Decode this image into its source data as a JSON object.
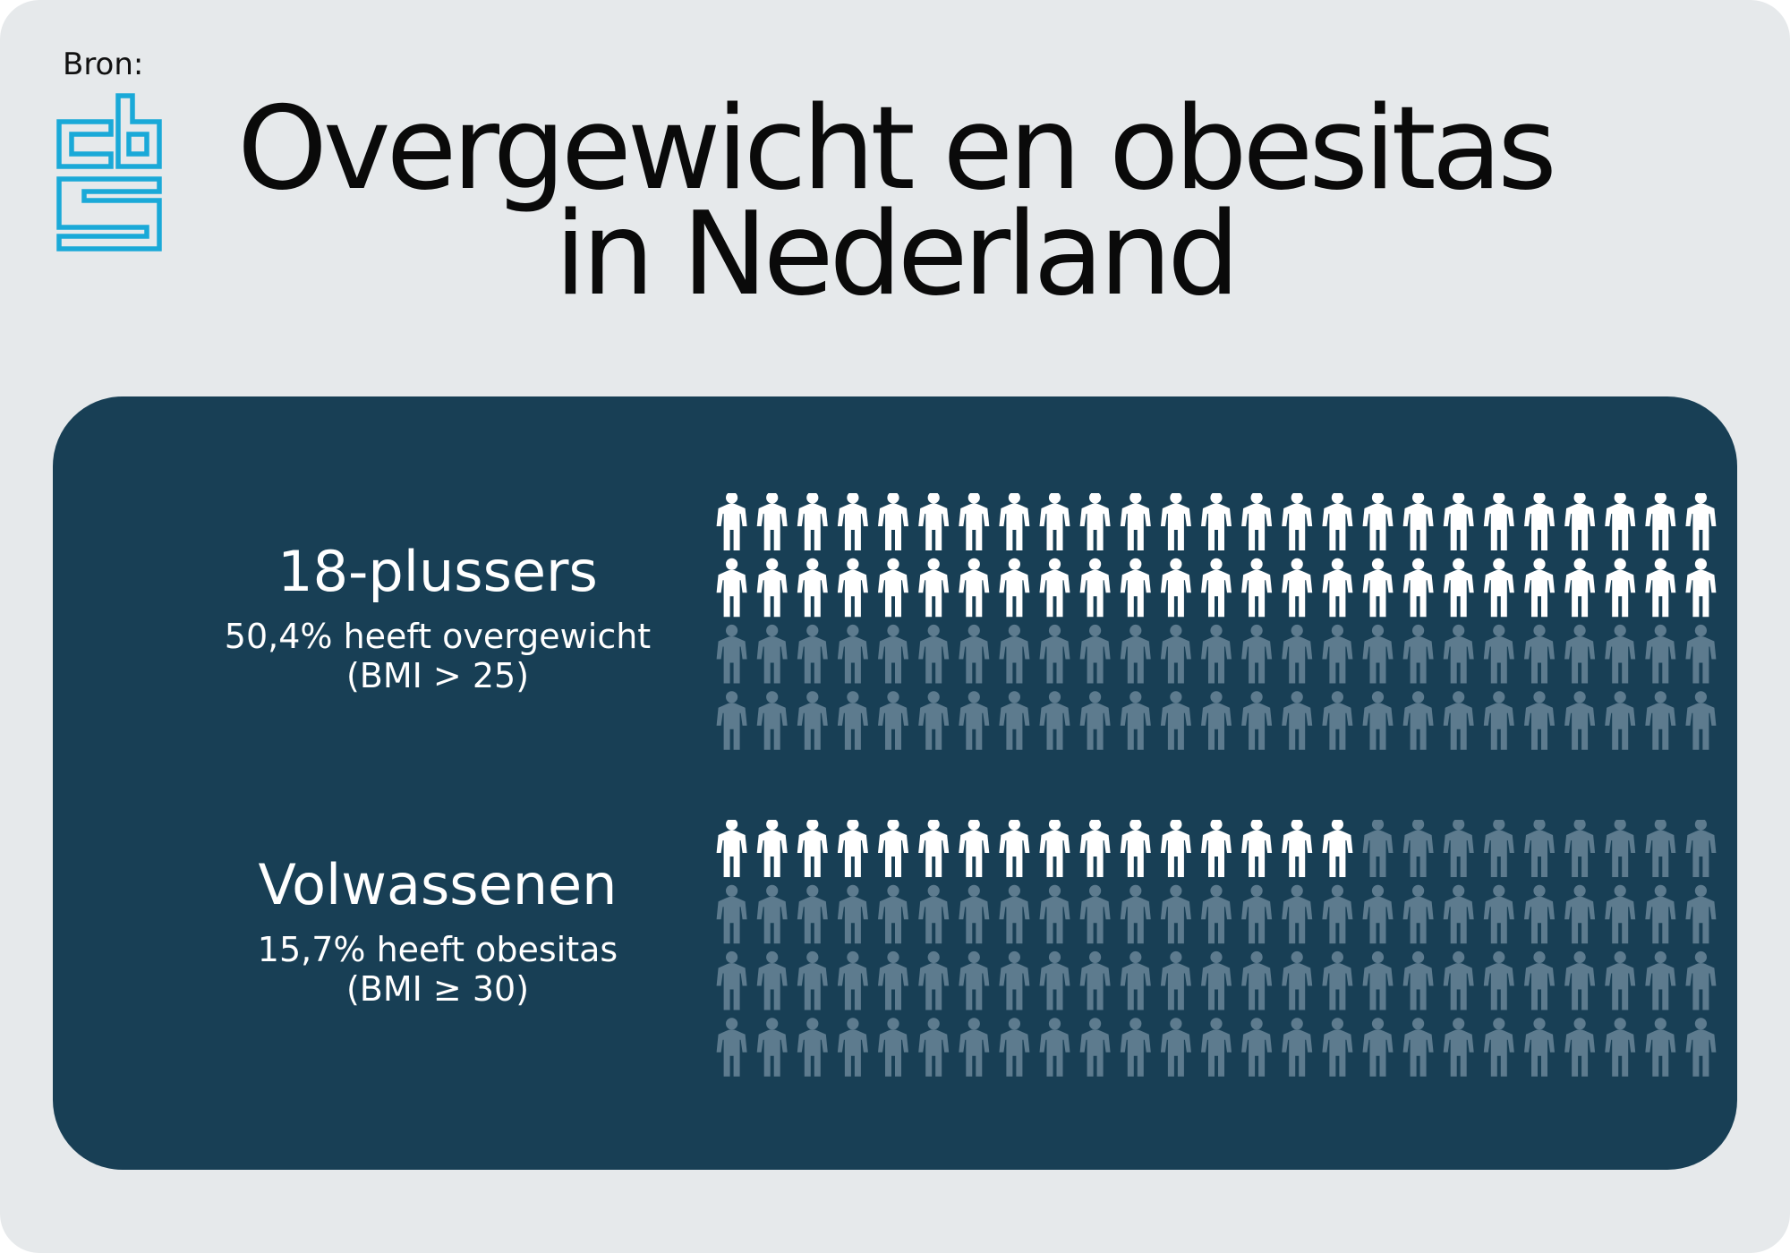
{
  "header": {
    "source_label": "Bron:",
    "logo_name": "cbs",
    "title_line1": "Overgewicht en obesitas",
    "title_line2": "in Nederland"
  },
  "colors": {
    "background": "#e6e9eb",
    "panel": "#183f55",
    "highlight_person": "#ffffff",
    "base_person": "#5d7b8e",
    "logo": "#1aa9d8"
  },
  "chart_data": [
    {
      "type": "pictograph",
      "group": "18-plussers",
      "description_line1": "50,4% heeft overgewicht",
      "description_line2": "(BMI > 25)",
      "total_icons": 100,
      "highlighted_icons": 50,
      "rows": 4,
      "columns": 25,
      "percentage": 50.4
    },
    {
      "type": "pictograph",
      "group": "Volwassenen",
      "description_line1": "15,7% heeft obesitas",
      "description_line2": "(BMI ≥ 30)",
      "total_icons": 100,
      "highlighted_icons": 16,
      "rows": 4,
      "columns": 25,
      "percentage": 15.7
    }
  ]
}
